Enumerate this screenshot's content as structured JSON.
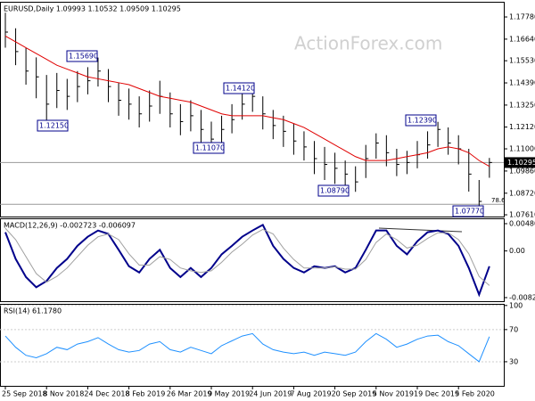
{
  "watermark": "ActionForex.com",
  "chart_data": [
    {
      "type": "hlc",
      "title": "EURUSD,Daily 1.09993 1.10532 1.09509 1.10295",
      "color": "#000000",
      "categories": [
        "25 Sep 2018",
        null,
        null,
        null,
        "8 Nov 2018",
        null,
        null,
        null,
        "24 Dec 2018",
        null,
        null,
        null,
        "8 Feb 2019",
        null,
        null,
        null,
        "26 Mar 2019",
        null,
        null,
        null,
        "9 May 2019",
        null,
        null,
        null,
        "24 Jun 2019",
        null,
        null,
        null,
        "7 Aug 2019",
        null,
        null,
        null,
        "20 Sep 2019",
        null,
        null,
        null,
        "5 Nov 2019",
        null,
        null,
        null,
        "19 Dec 2019",
        null,
        null,
        null,
        "5 Feb 2020",
        null,
        null,
        null
      ],
      "high": [
        1.18,
        1.172,
        1.162,
        1.157,
        1.148,
        1.149,
        1.146,
        1.15,
        1.152,
        1.1569,
        1.151,
        1.144,
        1.141,
        1.137,
        1.14,
        1.145,
        1.139,
        1.133,
        1.135,
        1.13,
        1.124,
        1.127,
        1.133,
        1.139,
        1.1412,
        1.137,
        1.13,
        1.127,
        1.123,
        1.119,
        1.114,
        1.111,
        1.108,
        1.104,
        1.101,
        1.112,
        1.118,
        1.117,
        1.11,
        1.109,
        1.114,
        1.119,
        1.1239,
        1.121,
        1.117,
        1.11,
        1.094,
        1.1053
      ],
      "low": [
        1.162,
        1.153,
        1.143,
        1.136,
        1.1215,
        1.131,
        1.13,
        1.134,
        1.138,
        1.142,
        1.134,
        1.127,
        1.125,
        1.121,
        1.124,
        1.128,
        1.121,
        1.117,
        1.119,
        1.113,
        1.1107,
        1.113,
        1.118,
        1.125,
        1.129,
        1.12,
        1.115,
        1.111,
        1.107,
        1.104,
        1.097,
        1.094,
        1.092,
        1.089,
        1.0879,
        1.095,
        1.105,
        1.101,
        1.096,
        1.097,
        1.1,
        1.105,
        1.111,
        1.107,
        1.102,
        1.088,
        1.0777,
        1.0951
      ],
      "close": [
        1.17,
        1.16,
        1.15,
        1.147,
        1.133,
        1.14,
        1.137,
        1.142,
        1.145,
        1.15,
        1.142,
        1.135,
        1.133,
        1.128,
        1.132,
        1.137,
        1.128,
        1.124,
        1.127,
        1.12,
        1.115,
        1.12,
        1.125,
        1.133,
        1.137,
        1.128,
        1.122,
        1.119,
        1.114,
        1.111,
        1.105,
        1.102,
        1.1,
        1.097,
        1.093,
        1.105,
        1.113,
        1.108,
        1.102,
        1.103,
        1.107,
        1.112,
        1.12,
        1.113,
        1.11,
        1.097,
        1.083,
        1.10295
      ],
      "overlay": {
        "color": "#e00000",
        "values": [
          1.168,
          1.165,
          1.162,
          1.159,
          1.156,
          1.153,
          1.151,
          1.149,
          1.147,
          1.146,
          1.145,
          1.144,
          1.143,
          1.141,
          1.139,
          1.137,
          1.136,
          1.135,
          1.134,
          1.132,
          1.13,
          1.128,
          1.127,
          1.127,
          1.127,
          1.127,
          1.126,
          1.125,
          1.123,
          1.121,
          1.118,
          1.115,
          1.112,
          1.109,
          1.106,
          1.104,
          1.104,
          1.104,
          1.105,
          1.106,
          1.107,
          1.108,
          1.11,
          1.111,
          1.11,
          1.108,
          1.104,
          1.101
        ]
      },
      "annotations": [
        "1.15690",
        "1.14120",
        "1.12150",
        "1.11070",
        "1.08790",
        "1.12390",
        "1.07770"
      ],
      "levels": [
        {
          "label": "78.6",
          "value": 1.0815
        }
      ],
      "ylim": [
        1.0752,
        1.1856
      ],
      "yticks": [
        {
          "value": 1.1778,
          "label": "1.17780"
        },
        {
          "value": 1.1664,
          "label": "1.16640"
        },
        {
          "value": 1.1553,
          "label": "1.15530"
        },
        {
          "value": 1.1439,
          "label": "1.14390"
        },
        {
          "value": 1.1325,
          "label": "1.13250"
        },
        {
          "value": 1.1212,
          "label": "1.12120"
        },
        {
          "value": 1.11,
          "label": "1.11000"
        },
        {
          "value": 1.0986,
          "label": "1.09860"
        },
        {
          "value": 1.0872,
          "label": "1.08720"
        },
        {
          "value": 1.0761,
          "label": "1.07610"
        }
      ]
    },
    {
      "type": "line",
      "title": "MACD(12,26,9) -0.002723 -0.006097",
      "series": [
        {
          "color": "#00008b",
          "values": [
            0.0033,
            -0.0014,
            -0.0046,
            -0.0064,
            -0.0053,
            -0.003,
            -0.0014,
            0.0009,
            0.0025,
            0.0036,
            0.003,
            0.0002,
            -0.0027,
            -0.0038,
            -0.0014,
            0.0002,
            -0.003,
            -0.0046,
            -0.003,
            -0.0046,
            -0.003,
            -0.0006,
            0.0009,
            0.0025,
            0.0036,
            0.0046,
            0.0009,
            -0.0014,
            -0.003,
            -0.0038,
            -0.0027,
            -0.003,
            -0.0027,
            -0.0038,
            -0.003,
            0.0002,
            0.0036,
            0.0036,
            0.0009,
            -0.0006,
            0.0017,
            0.0033,
            0.0036,
            0.003,
            0.0009,
            -0.003,
            -0.0077,
            -0.0027
          ]
        },
        {
          "color": "#a0a0a0",
          "values": [
            0.004,
            0.002,
            -0.001,
            -0.004,
            -0.0055,
            -0.0045,
            -0.003,
            -0.001,
            0.001,
            0.0025,
            0.003,
            0.002,
            -0.0005,
            -0.0025,
            -0.0025,
            -0.001,
            -0.0015,
            -0.003,
            -0.0035,
            -0.0038,
            -0.0035,
            -0.002,
            -0.0002,
            0.0012,
            0.0028,
            0.0038,
            0.003,
            0.0005,
            -0.0015,
            -0.003,
            -0.003,
            -0.003,
            -0.0028,
            -0.0032,
            -0.0032,
            -0.0015,
            0.0015,
            0.003,
            0.002,
            0.0005,
            0.001,
            0.0022,
            0.0032,
            0.0032,
            0.002,
            -0.0005,
            -0.0045,
            -0.0061
          ]
        }
      ],
      "ylim": [
        -0.00886,
        0.00575
      ],
      "yticks": [
        0.004809,
        {
          "value": 0,
          "label": "0.00"
        },
        -0.008227
      ]
    },
    {
      "type": "line",
      "title": "RSI(14) 61.1780",
      "series": [
        {
          "color": "#1e90ff",
          "values": [
            62,
            48,
            38,
            35,
            40,
            48,
            45,
            52,
            55,
            60,
            52,
            45,
            42,
            44,
            52,
            55,
            45,
            42,
            48,
            44,
            40,
            50,
            56,
            62,
            65,
            52,
            45,
            42,
            40,
            42,
            38,
            42,
            40,
            38,
            42,
            55,
            65,
            58,
            48,
            52,
            58,
            62,
            63,
            55,
            50,
            40,
            30,
            61.178
          ]
        }
      ],
      "ylim": [
        0,
        102
      ],
      "yticks": [
        100,
        70,
        30
      ]
    }
  ]
}
